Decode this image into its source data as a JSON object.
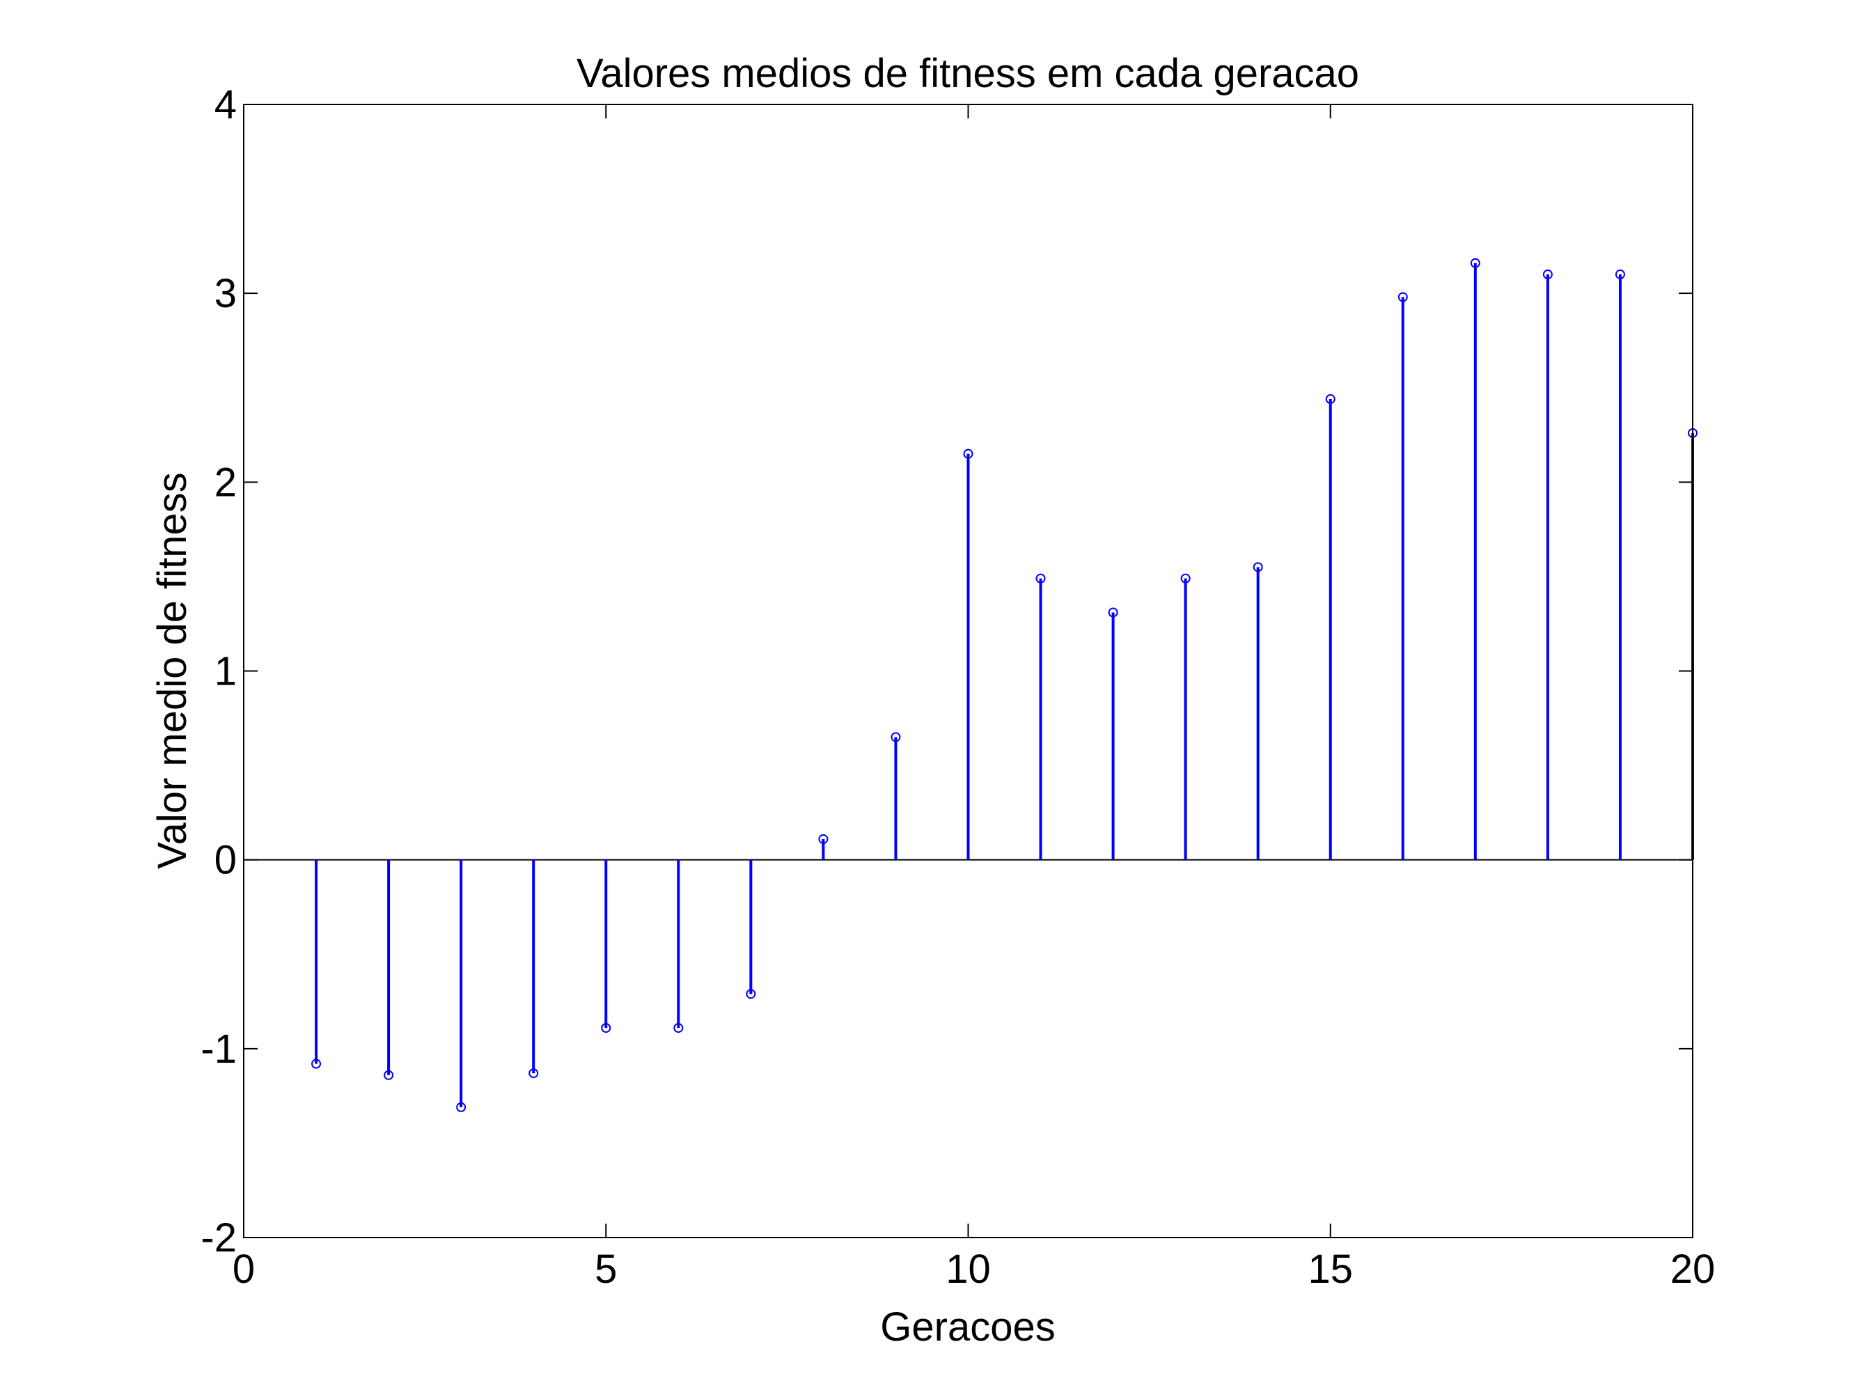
{
  "chart_data": {
    "type": "stem",
    "title": "Valores medios de fitness em cada geracao",
    "xlabel": "Geracoes",
    "ylabel": "Valor medio de fitness",
    "xlim": [
      0,
      20
    ],
    "ylim": [
      -2,
      4
    ],
    "xticks": [
      0,
      5,
      10,
      15,
      20
    ],
    "yticks": [
      -2,
      -1,
      0,
      1,
      2,
      3,
      4
    ],
    "xtick_labels": [
      "0",
      "5",
      "10",
      "15",
      "20"
    ],
    "ytick_labels": [
      "-2",
      "-1",
      "0",
      "1",
      "2",
      "3",
      "4"
    ],
    "grid": false,
    "color": "#0000ff",
    "x": [
      1,
      2,
      3,
      4,
      5,
      6,
      7,
      8,
      9,
      10,
      11,
      12,
      13,
      14,
      15,
      16,
      17,
      18,
      19,
      20
    ],
    "y": [
      -1.08,
      -1.14,
      -1.31,
      -1.13,
      -0.89,
      -0.89,
      -0.71,
      0.11,
      0.65,
      2.15,
      1.49,
      1.31,
      1.49,
      1.55,
      2.44,
      2.98,
      3.16,
      3.1,
      3.1,
      2.26
    ]
  }
}
